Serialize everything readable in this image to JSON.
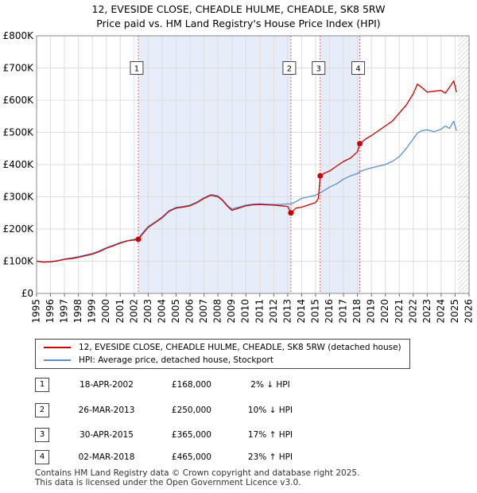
{
  "header": {
    "title": "12, EVESIDE CLOSE, CHEADLE HULME, CHEADLE, SK8 5RW",
    "subtitle": "Price paid vs. HM Land Registry's House Price Index (HPI)"
  },
  "colors": {
    "property_line": "#cc0000",
    "hpi_line": "#5b8fcc",
    "shade": "#e6ecf8",
    "vline": "#dd6666",
    "grid": "#dddddd"
  },
  "chart_data": {
    "type": "line",
    "title": "12, EVESIDE CLOSE, CHEADLE HULME, CHEADLE, SK8 5RW",
    "subtitle": "Price paid vs. HM Land Registry's House Price Index (HPI)",
    "xlabel": "",
    "ylabel": "",
    "xlim": [
      1995,
      2026
    ],
    "ylim": [
      0,
      800000
    ],
    "x_ticks": [
      "1995",
      "1996",
      "1997",
      "1998",
      "1999",
      "2000",
      "2001",
      "2002",
      "2003",
      "2004",
      "2005",
      "2006",
      "2007",
      "2008",
      "2009",
      "2010",
      "2011",
      "2012",
      "2013",
      "2014",
      "2015",
      "2016",
      "2017",
      "2018",
      "2019",
      "2020",
      "2021",
      "2022",
      "2023",
      "2024",
      "2025",
      "2026"
    ],
    "y_ticks": [
      {
        "value": 0,
        "label": "£0"
      },
      {
        "value": 100000,
        "label": "£100K"
      },
      {
        "value": 200000,
        "label": "£200K"
      },
      {
        "value": 300000,
        "label": "£300K"
      },
      {
        "value": 400000,
        "label": "£400K"
      },
      {
        "value": 500000,
        "label": "£500K"
      },
      {
        "value": 600000,
        "label": "£600K"
      },
      {
        "value": 700000,
        "label": "£700K"
      },
      {
        "value": 800000,
        "label": "£800K"
      }
    ],
    "shaded_ranges": [
      [
        2002.29,
        2013.23
      ],
      [
        2015.33,
        2018.17
      ]
    ],
    "future_hatch_from": 2025.2,
    "series": [
      {
        "name": "12, EVESIDE CLOSE, CHEADLE HULME, CHEADLE, SK8 5RW (detached house)",
        "color": "#cc0000",
        "x": [
          1995.0,
          1995.5,
          1996.0,
          1996.5,
          1997.0,
          1997.5,
          1998.0,
          1998.5,
          1999.0,
          1999.5,
          2000.0,
          2000.5,
          2001.0,
          2001.5,
          2002.0,
          2002.29,
          2002.6,
          2003.0,
          2003.5,
          2004.0,
          2004.5,
          2005.0,
          2005.5,
          2006.0,
          2006.5,
          2007.0,
          2007.5,
          2008.0,
          2008.3,
          2008.7,
          2009.0,
          2009.3,
          2009.7,
          2010.0,
          2010.5,
          2011.0,
          2011.5,
          2012.0,
          2012.5,
          2013.0,
          2013.23,
          2013.6,
          2014.0,
          2014.5,
          2015.0,
          2015.2,
          2015.33,
          2015.7,
          2016.0,
          2016.5,
          2017.0,
          2017.5,
          2018.0,
          2018.17,
          2018.6,
          2019.0,
          2019.5,
          2020.0,
          2020.5,
          2021.0,
          2021.5,
          2022.0,
          2022.3,
          2022.6,
          2023.0,
          2023.5,
          2024.0,
          2024.3,
          2024.6,
          2024.9,
          2025.1
        ],
        "values": [
          100000,
          97000,
          98000,
          101000,
          106000,
          108000,
          112000,
          117000,
          122000,
          130000,
          140000,
          148000,
          156000,
          163000,
          166000,
          168000,
          185000,
          205000,
          220000,
          235000,
          255000,
          265000,
          268000,
          272000,
          282000,
          295000,
          305000,
          300000,
          290000,
          270000,
          258000,
          262000,
          268000,
          272000,
          275000,
          276000,
          275000,
          274000,
          272000,
          270000,
          250000,
          265000,
          268000,
          275000,
          282000,
          295000,
          365000,
          375000,
          380000,
          395000,
          410000,
          420000,
          440000,
          465000,
          480000,
          490000,
          505000,
          520000,
          535000,
          560000,
          585000,
          620000,
          650000,
          640000,
          625000,
          628000,
          630000,
          622000,
          640000,
          660000,
          625000
        ]
      },
      {
        "name": "HPI: Average price, detached house, Stockport",
        "color": "#5b8fcc",
        "x": [
          1995.0,
          1995.5,
          1996.0,
          1996.5,
          1997.0,
          1997.5,
          1998.0,
          1998.5,
          1999.0,
          1999.5,
          2000.0,
          2000.5,
          2001.0,
          2001.5,
          2002.0,
          2002.29,
          2002.6,
          2003.0,
          2003.5,
          2004.0,
          2004.5,
          2005.0,
          2005.5,
          2006.0,
          2006.5,
          2007.0,
          2007.5,
          2008.0,
          2008.3,
          2008.7,
          2009.0,
          2009.3,
          2009.7,
          2010.0,
          2010.5,
          2011.0,
          2011.5,
          2012.0,
          2012.5,
          2013.0,
          2013.23,
          2013.6,
          2014.0,
          2014.5,
          2015.0,
          2015.33,
          2015.7,
          2016.0,
          2016.5,
          2017.0,
          2017.5,
          2018.0,
          2018.17,
          2018.6,
          2019.0,
          2019.5,
          2020.0,
          2020.5,
          2021.0,
          2021.5,
          2022.0,
          2022.3,
          2022.6,
          2023.0,
          2023.5,
          2024.0,
          2024.3,
          2024.6,
          2024.9,
          2025.1
        ],
        "values": [
          101000,
          98000,
          99000,
          102000,
          107000,
          110000,
          114000,
          119000,
          124000,
          132000,
          142000,
          150000,
          158000,
          164000,
          168000,
          171000,
          188000,
          208000,
          222000,
          237000,
          257000,
          267000,
          270000,
          274000,
          284000,
          297000,
          307000,
          303000,
          292000,
          272000,
          262000,
          266000,
          270000,
          274000,
          277000,
          278000,
          277000,
          276000,
          276000,
          278000,
          278000,
          285000,
          295000,
          300000,
          305000,
          312000,
          322000,
          330000,
          340000,
          355000,
          365000,
          372000,
          378000,
          385000,
          390000,
          395000,
          400000,
          410000,
          425000,
          450000,
          480000,
          498000,
          505000,
          508000,
          502000,
          510000,
          520000,
          512000,
          535000,
          505000
        ]
      }
    ],
    "markers": [
      {
        "label": "1",
        "x": 2002.29,
        "value": 168000
      },
      {
        "label": "2",
        "x": 2013.23,
        "value": 250000
      },
      {
        "label": "3",
        "x": 2015.33,
        "value": 365000
      },
      {
        "label": "4",
        "x": 2018.17,
        "value": 465000
      }
    ]
  },
  "legend": {
    "items": [
      {
        "label": "12, EVESIDE CLOSE, CHEADLE HULME, CHEADLE, SK8 5RW (detached house)"
      },
      {
        "label": "HPI: Average price, detached house, Stockport"
      }
    ]
  },
  "transactions": [
    {
      "num": "1",
      "date": "18-APR-2002",
      "price": "£168,000",
      "hpi": "2% ↓ HPI"
    },
    {
      "num": "2",
      "date": "26-MAR-2013",
      "price": "£250,000",
      "hpi": "10% ↓ HPI"
    },
    {
      "num": "3",
      "date": "30-APR-2015",
      "price": "£365,000",
      "hpi": "17% ↑ HPI"
    },
    {
      "num": "4",
      "date": "02-MAR-2018",
      "price": "£465,000",
      "hpi": "23% ↑ HPI"
    }
  ],
  "footer": {
    "line1": "Contains HM Land Registry data © Crown copyright and database right 2025.",
    "line2": "This data is licensed under the Open Government Licence v3.0."
  }
}
